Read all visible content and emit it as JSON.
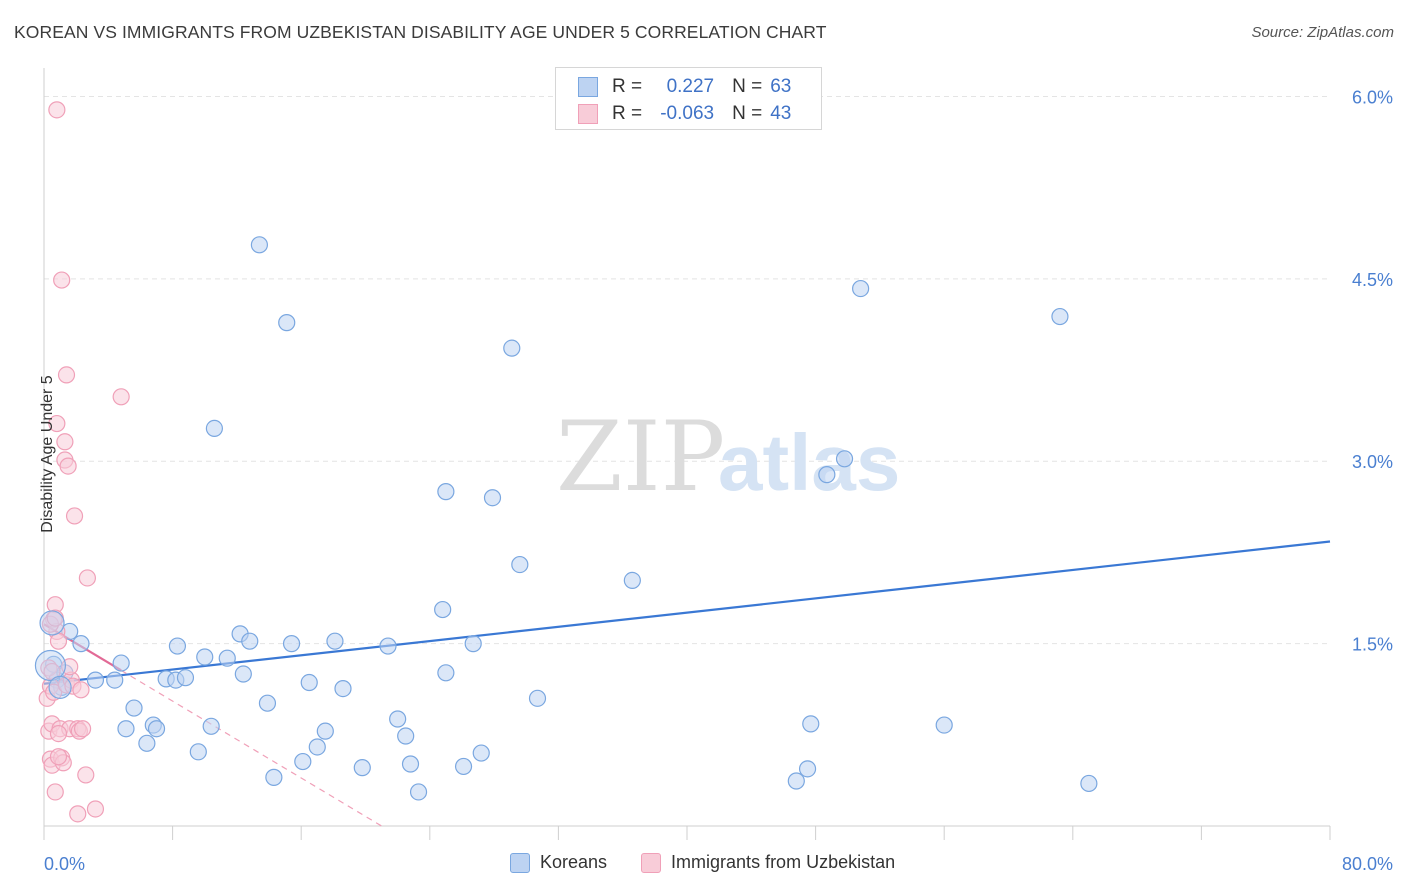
{
  "title": "KOREAN VS IMMIGRANTS FROM UZBEKISTAN DISABILITY AGE UNDER 5 CORRELATION CHART",
  "source": "Source: ZipAtlas.com",
  "watermark": {
    "zip": "ZIP",
    "atlas": "atlas"
  },
  "stats": [
    {
      "r_label": "R =",
      "r_value": "0.227",
      "n_label": "N =",
      "n_value": "63",
      "color": "#7aa7e0",
      "fill": "#bdd3f2"
    },
    {
      "r_label": "R =",
      "r_value": "-0.063",
      "n_label": "N =",
      "n_value": "43",
      "color": "#f0a0b8",
      "fill": "#f8ccd8"
    }
  ],
  "legend": [
    {
      "label": "Koreans",
      "color": "#7aa7e0",
      "fill": "#bdd3f2"
    },
    {
      "label": "Immigrants from Uzbekistan",
      "color": "#f0a0b8",
      "fill": "#f8ccd8"
    }
  ],
  "chart_data": {
    "type": "scatter",
    "title": "KOREAN VS IMMIGRANTS FROM UZBEKISTAN DISABILITY AGE UNDER 5 CORRELATION CHART",
    "xlabel": "",
    "ylabel": "Disability Age Under 5",
    "xlim": [
      0,
      80
    ],
    "ylim": [
      0,
      6.3
    ],
    "x_tick_labels": [
      "0.0%",
      "80.0%"
    ],
    "y_ticks": [
      1.5,
      3.0,
      4.5,
      6.0
    ],
    "y_tick_labels": [
      "1.5%",
      "3.0%",
      "4.5%",
      "6.0%"
    ],
    "grid": true,
    "legend_position": "bottom",
    "series": [
      {
        "name": "Koreans",
        "color": "#3a78d4",
        "point_fill": "#bdd3f2",
        "point_stroke": "#7aa7e0",
        "trend": {
          "x": [
            0,
            80
          ],
          "y": [
            1.17,
            2.34
          ],
          "style": "solid"
        },
        "points": [
          [
            0.6,
            1.33
          ],
          [
            0.8,
            1.2
          ],
          [
            1.1,
            1.14
          ],
          [
            1.3,
            1.26
          ],
          [
            1.6,
            1.6
          ],
          [
            2.3,
            1.5
          ],
          [
            3.2,
            1.2
          ],
          [
            4.4,
            1.2
          ],
          [
            4.8,
            1.34
          ],
          [
            5.6,
            0.97
          ],
          [
            6.4,
            0.68
          ],
          [
            5.1,
            0.8
          ],
          [
            6.8,
            0.83
          ],
          [
            7.0,
            0.8
          ],
          [
            7.6,
            1.21
          ],
          [
            8.2,
            1.2
          ],
          [
            8.3,
            1.48
          ],
          [
            8.8,
            1.22
          ],
          [
            9.6,
            0.61
          ],
          [
            10.0,
            1.39
          ],
          [
            10.4,
            0.82
          ],
          [
            10.6,
            3.27
          ],
          [
            11.4,
            1.38
          ],
          [
            12.2,
            1.58
          ],
          [
            12.4,
            1.25
          ],
          [
            12.8,
            1.52
          ],
          [
            13.4,
            4.78
          ],
          [
            13.9,
            1.01
          ],
          [
            14.3,
            0.4
          ],
          [
            15.1,
            4.14
          ],
          [
            15.4,
            1.5
          ],
          [
            16.1,
            0.53
          ],
          [
            16.5,
            1.18
          ],
          [
            17.0,
            0.65
          ],
          [
            17.5,
            0.78
          ],
          [
            18.1,
            1.52
          ],
          [
            18.6,
            1.13
          ],
          [
            19.8,
            0.48
          ],
          [
            21.4,
            1.48
          ],
          [
            22.0,
            0.88
          ],
          [
            22.5,
            0.74
          ],
          [
            22.8,
            0.51
          ],
          [
            23.3,
            0.28
          ],
          [
            24.8,
            1.78
          ],
          [
            25.0,
            1.26
          ],
          [
            25.0,
            2.75
          ],
          [
            26.1,
            0.49
          ],
          [
            26.7,
            1.5
          ],
          [
            27.2,
            0.6
          ],
          [
            27.9,
            2.7
          ],
          [
            29.1,
            3.93
          ],
          [
            29.6,
            2.15
          ],
          [
            30.7,
            1.05
          ],
          [
            36.6,
            2.02
          ],
          [
            46.8,
            0.37
          ],
          [
            47.5,
            0.47
          ],
          [
            47.7,
            0.84
          ],
          [
            48.7,
            2.89
          ],
          [
            49.8,
            3.02
          ],
          [
            50.8,
            4.42
          ],
          [
            56.0,
            0.83
          ],
          [
            63.2,
            4.19
          ],
          [
            65.0,
            0.35
          ]
        ]
      },
      {
        "name": "Immigrants from Uzbekistan",
        "color": "#e26a96",
        "point_fill": "#f8ccd8",
        "point_stroke": "#f0a0b8",
        "trend": {
          "x": [
            0,
            4.8
          ],
          "y": [
            1.66,
            1.28
          ],
          "style": "solid",
          "dashed_extension": {
            "x": [
              4.8,
              21
            ],
            "y": [
              1.28,
              0.0
            ]
          }
        },
        "points": [
          [
            0.2,
            1.05
          ],
          [
            0.3,
            1.3
          ],
          [
            0.4,
            1.15
          ],
          [
            0.3,
            0.78
          ],
          [
            0.4,
            0.55
          ],
          [
            0.5,
            0.5
          ],
          [
            0.5,
            0.84
          ],
          [
            0.6,
            1.7
          ],
          [
            0.7,
            1.82
          ],
          [
            0.8,
            1.6
          ],
          [
            0.5,
            1.27
          ],
          [
            0.6,
            1.1
          ],
          [
            0.7,
            0.28
          ],
          [
            0.8,
            3.31
          ],
          [
            0.9,
            1.52
          ],
          [
            1.0,
            0.8
          ],
          [
            1.1,
            0.56
          ],
          [
            1.2,
            0.52
          ],
          [
            0.4,
            1.66
          ],
          [
            1.4,
            1.16
          ],
          [
            1.1,
            4.49
          ],
          [
            1.3,
            3.16
          ],
          [
            1.3,
            3.01
          ],
          [
            1.4,
            3.71
          ],
          [
            1.5,
            2.96
          ],
          [
            1.6,
            0.8
          ],
          [
            1.7,
            1.2
          ],
          [
            1.8,
            1.15
          ],
          [
            1.6,
            1.31
          ],
          [
            1.9,
            2.55
          ],
          [
            2.1,
            0.8
          ],
          [
            0.8,
            5.89
          ],
          [
            0.7,
            1.71
          ],
          [
            2.2,
            0.78
          ],
          [
            2.3,
            1.12
          ],
          [
            0.9,
            0.76
          ],
          [
            2.4,
            0.8
          ],
          [
            2.1,
            0.1
          ],
          [
            2.6,
            0.42
          ],
          [
            3.2,
            0.14
          ],
          [
            0.9,
            0.57
          ],
          [
            2.7,
            2.04
          ],
          [
            4.8,
            3.53
          ]
        ]
      }
    ]
  }
}
